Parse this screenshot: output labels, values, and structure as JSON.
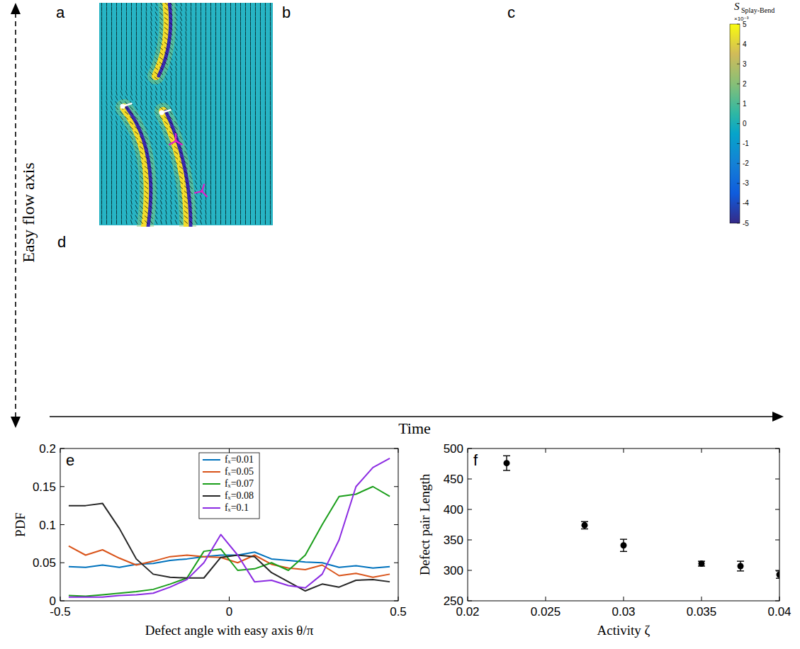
{
  "figure": {
    "axis_label": "Easy flow axis",
    "time_label": "Time",
    "panels": [
      "a",
      "b",
      "c",
      "d"
    ],
    "colorbar": {
      "symbol": "S",
      "subscript": "Splay-Bend",
      "multiplier": "×10⁻³",
      "range": [
        -5,
        5
      ],
      "ticks": [
        -5,
        -4,
        -3,
        -2,
        -1,
        0,
        1,
        2,
        3,
        4,
        5
      ]
    }
  },
  "chart_data": [
    {
      "type": "line",
      "panel_label": "e",
      "xlabel": "Defect angle with easy axis θ/π",
      "ylabel": "PDF",
      "x": [
        -0.475,
        -0.425,
        -0.375,
        -0.325,
        -0.275,
        -0.225,
        -0.175,
        -0.125,
        -0.075,
        -0.025,
        0.025,
        0.075,
        0.125,
        0.175,
        0.225,
        0.275,
        0.325,
        0.375,
        0.425,
        0.475
      ],
      "series": [
        {
          "name": "fₓ=0.01",
          "color": "#0072bd",
          "values": [
            0.045,
            0.044,
            0.047,
            0.044,
            0.048,
            0.049,
            0.053,
            0.055,
            0.058,
            0.06,
            0.06,
            0.064,
            0.055,
            0.053,
            0.051,
            0.05,
            0.044,
            0.046,
            0.043,
            0.045
          ]
        },
        {
          "name": "fₓ=0.05",
          "color": "#d95319",
          "values": [
            0.072,
            0.06,
            0.067,
            0.056,
            0.047,
            0.052,
            0.058,
            0.06,
            0.058,
            0.057,
            0.05,
            0.06,
            0.048,
            0.043,
            0.041,
            0.047,
            0.033,
            0.036,
            0.031,
            0.035
          ]
        },
        {
          "name": "fₓ=0.07",
          "color": "#1a9e1a",
          "values": [
            0.007,
            0.006,
            0.008,
            0.01,
            0.012,
            0.015,
            0.022,
            0.03,
            0.065,
            0.068,
            0.04,
            0.042,
            0.05,
            0.04,
            0.06,
            0.1,
            0.137,
            0.14,
            0.15,
            0.137
          ]
        },
        {
          "name": "fₓ=0.08",
          "color": "#262626",
          "values": [
            0.125,
            0.125,
            0.128,
            0.095,
            0.055,
            0.035,
            0.031,
            0.03,
            0.03,
            0.057,
            0.06,
            0.058,
            0.037,
            0.025,
            0.013,
            0.022,
            0.018,
            0.027,
            0.028,
            0.025
          ]
        },
        {
          "name": "fₓ=0.1",
          "color": "#8b2be2",
          "values": [
            0.005,
            0.005,
            0.005,
            0.007,
            0.008,
            0.01,
            0.018,
            0.028,
            0.05,
            0.087,
            0.06,
            0.025,
            0.027,
            0.02,
            0.017,
            0.035,
            0.08,
            0.15,
            0.175,
            0.187
          ]
        }
      ],
      "xlim": [
        -0.5,
        0.5
      ],
      "ylim": [
        0,
        0.2
      ],
      "xticks": [
        -0.5,
        0,
        0.5
      ],
      "yticks": [
        0,
        0.05,
        0.1,
        0.15,
        0.2
      ],
      "legend": "top"
    },
    {
      "type": "scatter",
      "panel_label": "f",
      "xlabel": "Activity ζ",
      "ylabel": "Defect pair Length",
      "x": [
        0.0225,
        0.0275,
        0.03,
        0.035,
        0.0375,
        0.04
      ],
      "values": [
        476,
        374,
        341,
        311,
        307,
        293
      ],
      "errors": [
        12,
        6,
        10,
        4,
        8,
        6
      ],
      "color": "#000000",
      "marker": "circle",
      "xlim": [
        0.02,
        0.04
      ],
      "ylim": [
        250,
        500
      ],
      "xticks": [
        0.02,
        0.025,
        0.03,
        0.035,
        0.04
      ],
      "yticks": [
        250,
        300,
        350,
        400,
        450,
        500
      ]
    }
  ]
}
